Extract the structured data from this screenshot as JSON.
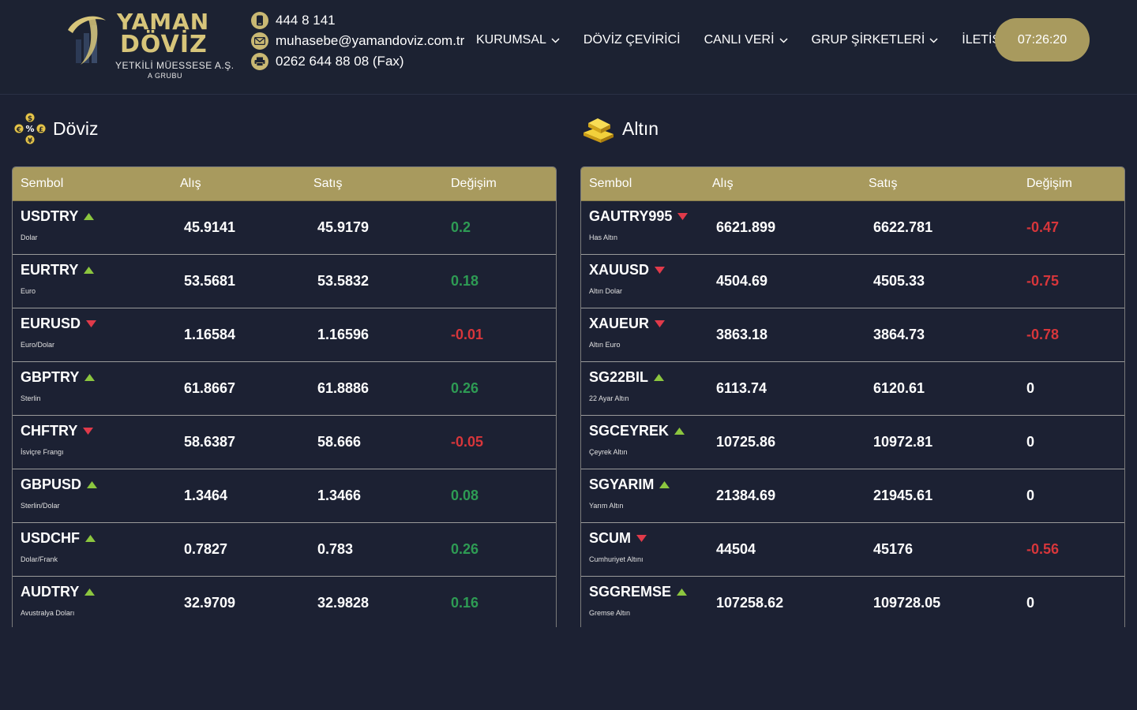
{
  "brand": {
    "title_line1": "YAMAN",
    "title_line2": "DÖVİZ",
    "subtitle": "YETKİLİ MÜESSESE A.Ş.",
    "group": "A GRUBU",
    "gold": "#d7c57a"
  },
  "contact": {
    "phone": "444 8 141",
    "email": "muhasebe@yamandoviz.com.tr",
    "fax": "0262 644 88 08 (Fax)"
  },
  "nav": {
    "items": [
      {
        "label": "KURUMSAL",
        "dropdown": true
      },
      {
        "label": "DÖVİZ ÇEVİRİCİ",
        "dropdown": false
      },
      {
        "label": "CANLI VERİ",
        "dropdown": true
      },
      {
        "label": "GRUP ŞİRKETLERİ",
        "dropdown": true
      },
      {
        "label": "İLETİŞİM",
        "dropdown": false
      }
    ],
    "clock": "07:26:20"
  },
  "colors": {
    "accent": "#a89a5e",
    "up": "#2e9b54",
    "down": "#d7363b",
    "arrow_up": "#8cc63f",
    "arrow_down": "#e03a4a"
  },
  "doviz": {
    "title": "Döviz",
    "columns": [
      "Sembol",
      "Alış",
      "Satış",
      "Değişim"
    ],
    "rows": [
      {
        "symbol": "USDTRY",
        "name": "Dolar",
        "buy": "45.9141",
        "sell": "45.9179",
        "change": "0.2",
        "trend": "up"
      },
      {
        "symbol": "EURTRY",
        "name": "Euro",
        "buy": "53.5681",
        "sell": "53.5832",
        "change": "0.18",
        "trend": "up"
      },
      {
        "symbol": "EURUSD",
        "name": "Euro/Dolar",
        "buy": "1.16584",
        "sell": "1.16596",
        "change": "-0.01",
        "trend": "down"
      },
      {
        "symbol": "GBPTRY",
        "name": "Sterlin",
        "buy": "61.8667",
        "sell": "61.8886",
        "change": "0.26",
        "trend": "up"
      },
      {
        "symbol": "CHFTRY",
        "name": "İsviçre Frangı",
        "buy": "58.6387",
        "sell": "58.666",
        "change": "-0.05",
        "trend": "down"
      },
      {
        "symbol": "GBPUSD",
        "name": "Sterlin/Dolar",
        "buy": "1.3464",
        "sell": "1.3466",
        "change": "0.08",
        "trend": "up"
      },
      {
        "symbol": "USDCHF",
        "name": "Dolar/Frank",
        "buy": "0.7827",
        "sell": "0.783",
        "change": "0.26",
        "trend": "up"
      },
      {
        "symbol": "AUDTRY",
        "name": "Avustralya Doları",
        "buy": "32.9709",
        "sell": "32.9828",
        "change": "0.16",
        "trend": "up"
      }
    ]
  },
  "altin": {
    "title": "Altın",
    "columns": [
      "Sembol",
      "Alış",
      "Satış",
      "Değişim"
    ],
    "rows": [
      {
        "symbol": "GAUTRY995",
        "name": "Has Altın",
        "buy": "6621.899",
        "sell": "6622.781",
        "change": "-0.47",
        "trend": "down",
        "change_color": "down"
      },
      {
        "symbol": "XAUUSD",
        "name": "Altın Dolar",
        "buy": "4504.69",
        "sell": "4505.33",
        "change": "-0.75",
        "trend": "down",
        "change_color": "down"
      },
      {
        "symbol": "XAUEUR",
        "name": "Altın Euro",
        "buy": "3863.18",
        "sell": "3864.73",
        "change": "-0.78",
        "trend": "down",
        "change_color": "down"
      },
      {
        "symbol": "SG22BIL",
        "name": "22 Ayar Altın",
        "buy": "6113.74",
        "sell": "6120.61",
        "change": "0",
        "trend": "up",
        "change_color": "flat"
      },
      {
        "symbol": "SGCEYREK",
        "name": "Çeyrek Altın",
        "buy": "10725.86",
        "sell": "10972.81",
        "change": "0",
        "trend": "up",
        "change_color": "flat"
      },
      {
        "symbol": "SGYARIM",
        "name": "Yarım Altın",
        "buy": "21384.69",
        "sell": "21945.61",
        "change": "0",
        "trend": "up",
        "change_color": "flat"
      },
      {
        "symbol": "SCUM",
        "name": "Cumhuriyet Altını",
        "buy": "44504",
        "sell": "45176",
        "change": "-0.56",
        "trend": "down",
        "change_color": "down"
      },
      {
        "symbol": "SGGREMSE",
        "name": "Gremse Altın",
        "buy": "107258.62",
        "sell": "109728.05",
        "change": "0",
        "trend": "up",
        "change_color": "flat"
      }
    ]
  }
}
